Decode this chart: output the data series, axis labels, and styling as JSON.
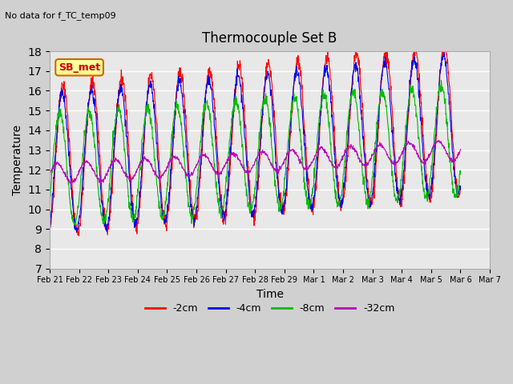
{
  "title": "Thermocouple Set B",
  "xlabel": "Time",
  "ylabel": "Temperature",
  "top_left_text": "No data for f_TC_temp09",
  "legend_label_text": "SB_met",
  "ylim": [
    7.0,
    18.0
  ],
  "yticks": [
    7.0,
    8.0,
    9.0,
    10.0,
    11.0,
    12.0,
    13.0,
    14.0,
    15.0,
    16.0,
    17.0,
    18.0
  ],
  "colors": {
    "2cm": "#ff0000",
    "4cm": "#0000ee",
    "8cm": "#00bb00",
    "32cm": "#bb00bb"
  },
  "line_labels": [
    "-2cm",
    "-4cm",
    "-8cm",
    "-32cm"
  ],
  "day_labels": [
    "Feb 21",
    "Feb 22",
    "Feb 23",
    "Feb 24",
    "Feb 25",
    "Feb 26",
    "Feb 27",
    "Feb 28",
    "Feb 29",
    "Mar 1",
    "Mar 2",
    "Mar 3",
    "Mar 4",
    "Mar 5",
    "Mar 6",
    "Mar 7"
  ],
  "fig_bg_color": "#d0d0d0",
  "plot_bg_color": "#e8e8e8"
}
